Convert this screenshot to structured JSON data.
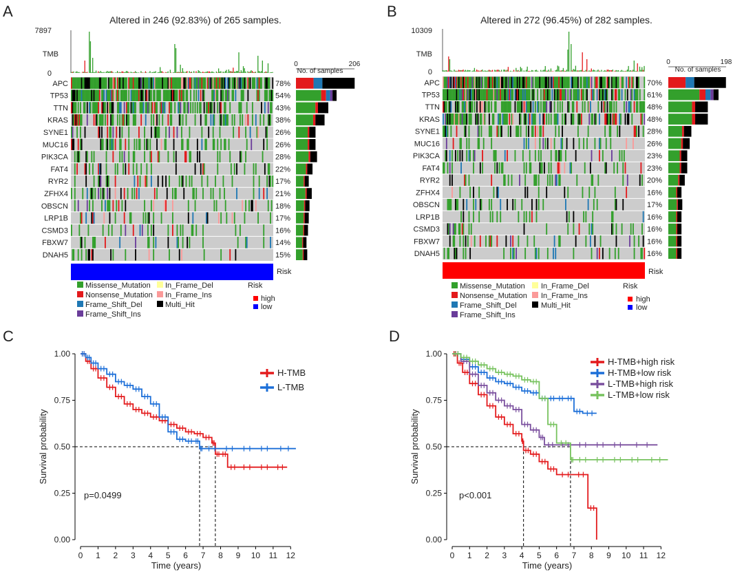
{
  "panels": {
    "A": {
      "letter": "A",
      "title": "Altered in 246 (92.83%) of 265 samples.",
      "tmb_label": "TMB",
      "tmb_max": "7897",
      "tmb_min": "0",
      "bar_axis_label": "No. of samples",
      "bar_axis_min": "0",
      "bar_axis_max": "206",
      "risk_label": "Risk"
    },
    "B": {
      "letter": "B",
      "title": "Altered in 272 (96.45%) of 282 samples.",
      "tmb_label": "TMB",
      "tmb_max": "10309",
      "tmb_min": "0",
      "bar_axis_label": "No. of samples",
      "bar_axis_min": "0",
      "bar_axis_max": "198",
      "risk_label": "Risk"
    },
    "C": {
      "letter": "C",
      "pvalue": "p=0.0499"
    },
    "D": {
      "letter": "D",
      "pvalue": "p<0.001"
    }
  },
  "legend": {
    "missense": "Missense_Mutation",
    "nonsense": "Nonsense_Mutation",
    "fs_del": "Frame_Shift_Del",
    "fs_ins": "Frame_Shift_Ins",
    "if_del": "In_Frame_Del",
    "if_ins": "In_Frame_Ins",
    "multi": "Multi_Hit",
    "risk_title": "Risk",
    "high": "high",
    "low": "low"
  },
  "colors": {
    "missense": "#33a02c",
    "nonsense": "#e31a1c",
    "fs_del": "#1f78b4",
    "fs_ins": "#6a3d9a",
    "if_del": "#ffff99",
    "if_ins": "#fb9a99",
    "multi": "#000000",
    "background": "#cccccc",
    "high": "#ff0000",
    "low": "#0000ff"
  },
  "chart_data": [
    {
      "type": "heatmap",
      "panel": "A",
      "title": "Altered in 246 (92.83%) of 265 samples.",
      "genes": [
        "APC",
        "TP53",
        "TTN",
        "KRAS",
        "SYNE1",
        "MUC16",
        "PIK3CA",
        "FAT4",
        "RYR2",
        "ZFHX4",
        "OBSCN",
        "LRP1B",
        "CSMD3",
        "FBXW7",
        "DNAH5"
      ],
      "percentages": [
        "78%",
        "54%",
        "43%",
        "38%",
        "26%",
        "26%",
        "28%",
        "22%",
        "17%",
        "21%",
        "18%",
        "17%",
        "16%",
        "14%",
        "15%"
      ],
      "samples_total": 265,
      "tmb_range": [
        0,
        7897
      ],
      "bar_axis_range": [
        0,
        206
      ],
      "risk_group": "low"
    },
    {
      "type": "heatmap",
      "panel": "B",
      "title": "Altered in 272 (96.45%) of 282 samples.",
      "genes": [
        "APC",
        "TP53",
        "TTN",
        "KRAS",
        "SYNE1",
        "MUC16",
        "PIK3CA",
        "FAT4",
        "RYR2",
        "ZFHX4",
        "OBSCN",
        "LRP1B",
        "CSMD3",
        "FBXW7",
        "DNAH5"
      ],
      "percentages": [
        "70%",
        "61%",
        "48%",
        "48%",
        "28%",
        "26%",
        "23%",
        "23%",
        "20%",
        "16%",
        "17%",
        "16%",
        "16%",
        "16%",
        "16%"
      ],
      "samples_total": 282,
      "tmb_range": [
        0,
        10309
      ],
      "bar_axis_range": [
        0,
        198
      ],
      "risk_group": "high"
    },
    {
      "type": "line",
      "panel": "C",
      "xlabel": "Time (years)",
      "ylabel": "Survival probability",
      "xlim": [
        0,
        12.5
      ],
      "ylim": [
        0,
        1
      ],
      "xticks": [
        0,
        1,
        2,
        3,
        4,
        5,
        6,
        7,
        8,
        9,
        10,
        11,
        12
      ],
      "yticks": [
        "0.00",
        "0.25",
        "0.50",
        "0.75",
        "1.00"
      ],
      "median_lines": [
        6.8,
        7.7
      ],
      "pvalue": "p=0.0499",
      "series": [
        {
          "name": "H-TMB",
          "color": "#e31a1c",
          "x": [
            0,
            0.3,
            0.6,
            1,
            1.5,
            2,
            2.5,
            3,
            3.5,
            4,
            4.5,
            5,
            5.5,
            6,
            6.5,
            7,
            7.5,
            7.7,
            8,
            8.4,
            9,
            10,
            11,
            11.8
          ],
          "y": [
            1,
            0.96,
            0.92,
            0.87,
            0.82,
            0.77,
            0.73,
            0.7,
            0.68,
            0.66,
            0.64,
            0.62,
            0.6,
            0.58,
            0.57,
            0.55,
            0.52,
            0.46,
            0.46,
            0.39,
            0.39,
            0.39,
            0.39,
            0.39
          ]
        },
        {
          "name": "L-TMB",
          "color": "#1c6fd8",
          "x": [
            0,
            0.3,
            0.6,
            1,
            1.5,
            2,
            2.5,
            3,
            3.5,
            4,
            4.5,
            5,
            5.5,
            6,
            6.5,
            6.8,
            7,
            8,
            9,
            10,
            11,
            12.3
          ],
          "y": [
            1,
            0.98,
            0.95,
            0.92,
            0.89,
            0.85,
            0.83,
            0.81,
            0.77,
            0.73,
            0.66,
            0.58,
            0.54,
            0.53,
            0.53,
            0.49,
            0.49,
            0.49,
            0.49,
            0.49,
            0.49,
            0.49
          ]
        }
      ]
    },
    {
      "type": "line",
      "panel": "D",
      "xlabel": "Time (years)",
      "ylabel": "Survival probability",
      "xlim": [
        0,
        12.5
      ],
      "ylim": [
        0,
        1
      ],
      "xticks": [
        0,
        1,
        2,
        3,
        4,
        5,
        6,
        7,
        8,
        9,
        10,
        11,
        12
      ],
      "yticks": [
        "0.00",
        "0.25",
        "0.50",
        "0.75",
        "1.00"
      ],
      "median_lines": [
        4.1,
        6.8
      ],
      "pvalue": "p<0.001",
      "series": [
        {
          "name": "H-TMB+high risk",
          "color": "#e31a1c",
          "x": [
            0,
            0.3,
            0.6,
            1,
            1.5,
            2,
            2.5,
            3,
            3.5,
            4,
            4.1,
            4.5,
            5,
            5.5,
            6,
            7,
            7.8,
            8.3
          ],
          "y": [
            1,
            0.95,
            0.9,
            0.84,
            0.78,
            0.72,
            0.66,
            0.62,
            0.57,
            0.53,
            0.48,
            0.46,
            0.42,
            0.38,
            0.35,
            0.35,
            0.17,
            0
          ]
        },
        {
          "name": "H-TMB+low risk",
          "color": "#1c6fd8",
          "x": [
            0,
            0.5,
            1,
            1.5,
            2,
            2.5,
            3,
            3.5,
            4,
            4.5,
            5,
            5.5,
            6,
            6.5,
            7,
            7.5,
            8.3
          ],
          "y": [
            1,
            0.97,
            0.93,
            0.9,
            0.87,
            0.85,
            0.84,
            0.82,
            0.8,
            0.79,
            0.76,
            0.76,
            0.76,
            0.76,
            0.69,
            0.68,
            0.68
          ]
        },
        {
          "name": "L-TMB+high risk",
          "color": "#7a4f9e",
          "x": [
            0,
            0.5,
            1,
            1.5,
            2,
            2.5,
            3,
            3.5,
            4,
            4.5,
            5,
            5.3,
            6,
            7,
            8,
            9,
            10,
            11.8
          ],
          "y": [
            1,
            0.96,
            0.89,
            0.83,
            0.79,
            0.75,
            0.72,
            0.7,
            0.62,
            0.59,
            0.55,
            0.51,
            0.51,
            0.51,
            0.51,
            0.51,
            0.51,
            0.51
          ]
        },
        {
          "name": "L-TMB+low risk",
          "color": "#77c25e",
          "x": [
            0,
            0.5,
            1,
            1.5,
            2,
            2.5,
            3,
            3.5,
            4,
            4.5,
            5,
            5.5,
            6,
            6.8,
            7,
            8,
            9,
            10,
            11,
            12.4
          ],
          "y": [
            1,
            0.98,
            0.96,
            0.94,
            0.92,
            0.9,
            0.89,
            0.88,
            0.86,
            0.85,
            0.76,
            0.62,
            0.52,
            0.43,
            0.43,
            0.43,
            0.43,
            0.43,
            0.43,
            0.43
          ]
        }
      ]
    }
  ]
}
